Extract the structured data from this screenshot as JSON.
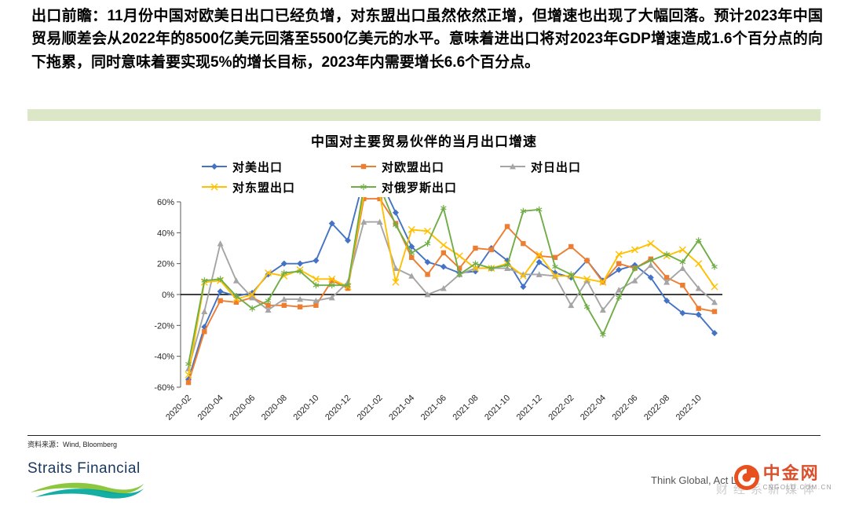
{
  "intro": {
    "text": "出口前瞻：11月份中国对欧美日出口已经负增，对东盟出口虽然依然正增，但增速也出现了大幅回落。预计2023年中国贸易顺差会从2022年的8500亿美元回落至5500亿美元的水平。意味着进出口将对2023年GDP增速造成1.6个百分点的向下拖累，同时意味着要实现5%的增长目标，2023年内需要增长6.6个百分点。"
  },
  "chart_data": {
    "type": "line",
    "title": "中国对主要贸易伙伴的当月出口增速",
    "xlabel": "",
    "ylabel": "",
    "ylim": [
      -60,
      60
    ],
    "ytick_step": 20,
    "ytick_suffix": "%",
    "grid": false,
    "legend_position": "top",
    "x_tick_every": 2,
    "categories": [
      "2020-02",
      "2020-03",
      "2020-04",
      "2020-05",
      "2020-06",
      "2020-07",
      "2020-08",
      "2020-09",
      "2020-10",
      "2020-11",
      "2020-12",
      "2021-01",
      "2021-02",
      "2021-03",
      "2021-04",
      "2021-05",
      "2021-06",
      "2021-07",
      "2021-08",
      "2021-09",
      "2021-10",
      "2021-11",
      "2021-12",
      "2022-01",
      "2022-02",
      "2022-03",
      "2022-04",
      "2022-05",
      "2022-06",
      "2022-07",
      "2022-08",
      "2022-09",
      "2022-10",
      "2022-11"
    ],
    "series": [
      {
        "name": "对美出口",
        "color": "#4472C4",
        "marker": "diamond",
        "values": [
          -55,
          -21,
          2,
          -1,
          1,
          13,
          20,
          20,
          22,
          46,
          35,
          75,
          75,
          53,
          31,
          21,
          18,
          14,
          15,
          30,
          22,
          5,
          21,
          14,
          11,
          22,
          9,
          16,
          19,
          11,
          -4,
          -12,
          -13,
          -25
        ]
      },
      {
        "name": "对欧盟出口",
        "color": "#ED7D31",
        "marker": "square",
        "values": [
          -57,
          -24,
          -4,
          -5,
          -2,
          -7,
          -7,
          -8,
          -7,
          9,
          4,
          62,
          62,
          46,
          24,
          13,
          27,
          17,
          30,
          29,
          44,
          33,
          25,
          24,
          31,
          22,
          8,
          20,
          17,
          23,
          11,
          6,
          -9,
          -11
        ]
      },
      {
        "name": "对日出口",
        "color": "#A5A5A5",
        "marker": "triangle",
        "values": [
          -48,
          -11,
          33,
          9,
          -2,
          -10,
          -3,
          -3,
          -4,
          -2,
          8,
          47,
          47,
          17,
          12,
          0,
          4,
          13,
          17,
          17,
          17,
          13,
          13,
          12,
          -7,
          9,
          -10,
          3,
          9,
          19,
          8,
          17,
          4,
          -5
        ]
      },
      {
        "name": "对东盟出口",
        "color": "#FFC000",
        "marker": "x",
        "values": [
          -52,
          8,
          9,
          -3,
          0,
          14,
          12,
          16,
          10,
          10,
          5,
          65,
          65,
          8,
          42,
          41,
          32,
          25,
          17,
          17,
          20,
          12,
          26,
          12,
          12,
          10,
          8,
          26,
          29,
          33,
          25,
          29,
          20,
          5
        ]
      },
      {
        "name": "对俄罗斯出口",
        "color": "#70AD47",
        "marker": "asterisk",
        "values": [
          -45,
          9,
          10,
          -1,
          -9,
          -4,
          14,
          15,
          6,
          6,
          6,
          70,
          70,
          45,
          27,
          33,
          56,
          13,
          20,
          17,
          19,
          54,
          55,
          18,
          13,
          -8,
          -26,
          -2,
          17,
          22,
          26,
          21,
          35,
          18
        ]
      }
    ]
  },
  "footer": {
    "source": "资料来源：Wind, Bloomberg",
    "straits": "Straits Financial",
    "tagline": "Think Global, Act Local",
    "watermark": "财经系新媒体",
    "cngold": {
      "name": "中金网",
      "domain": "CNGOLD.COM.CN"
    }
  }
}
